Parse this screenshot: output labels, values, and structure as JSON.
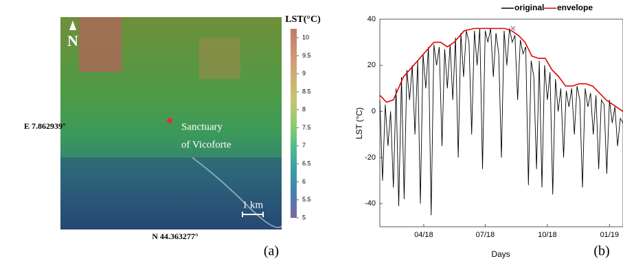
{
  "map": {
    "north": "N",
    "place": [
      "Sanctuary",
      "of Vicoforte"
    ],
    "scale": "1 km",
    "lon_label": "E 7.862939°",
    "lat_label": "N 44.363277°",
    "panel": "(a)",
    "colorbar_title": "LST(°C)",
    "colorbar_lim": [
      5,
      10.25
    ],
    "colorbar_ticks": [
      10,
      9.5,
      9,
      8.5,
      8,
      7.5,
      7,
      6.5,
      6,
      5.5,
      5
    ]
  },
  "chart_data": {
    "type": "line",
    "panel": "(b)",
    "xlabel": "Days",
    "ylabel": "LST (°C)",
    "legend": "top-right",
    "xlim": [
      25,
      385
    ],
    "ylim": [
      -50,
      40
    ],
    "xticks": [
      {
        "value": 90,
        "label": "04/18"
      },
      {
        "value": 181,
        "label": "07/18"
      },
      {
        "value": 273,
        "label": "10/18"
      },
      {
        "value": 365,
        "label": "01/19"
      }
    ],
    "yticks": [
      -40,
      -20,
      0,
      20,
      40
    ],
    "max_marker": {
      "x": 222,
      "y": 36,
      "color": "#999999"
    },
    "series": [
      {
        "name": "original",
        "color": "#000000",
        "x": [
          25,
          29,
          33,
          37,
          41,
          45,
          49,
          53,
          57,
          61,
          65,
          69,
          73,
          77,
          81,
          85,
          89,
          93,
          97,
          101,
          105,
          109,
          113,
          117,
          121,
          125,
          129,
          133,
          137,
          141,
          145,
          149,
          153,
          157,
          161,
          165,
          169,
          173,
          177,
          181,
          185,
          189,
          193,
          197,
          201,
          205,
          209,
          213,
          217,
          221,
          225,
          229,
          233,
          237,
          241,
          245,
          249,
          253,
          257,
          261,
          265,
          269,
          273,
          277,
          281,
          285,
          289,
          293,
          297,
          301,
          305,
          309,
          313,
          317,
          321,
          325,
          329,
          333,
          337,
          341,
          345,
          349,
          353,
          357,
          361,
          365,
          369,
          373,
          377,
          381,
          385
        ],
        "values": [
          5,
          -30,
          3,
          -15,
          0,
          -33,
          10,
          -41,
          15,
          -38,
          18,
          5,
          20,
          -10,
          22,
          -40,
          25,
          10,
          28,
          -45,
          29,
          20,
          28,
          -15,
          27,
          10,
          29,
          5,
          32,
          -20,
          34,
          15,
          35,
          30,
          -10,
          35,
          20,
          36,
          -25,
          35,
          30,
          36,
          15,
          34,
          25,
          -20,
          35,
          20,
          36,
          30,
          33,
          5,
          31,
          25,
          28,
          -32,
          22,
          15,
          -25,
          22,
          -33,
          20,
          5,
          17,
          -36,
          14,
          0,
          10,
          -20,
          9,
          2,
          10,
          -10,
          11,
          5,
          -33,
          10,
          2,
          8,
          -10,
          7,
          -25,
          5,
          3,
          -27,
          5,
          -5,
          2,
          -15,
          -3,
          -5
        ]
      },
      {
        "name": "envelope",
        "color": "#e00000",
        "x": [
          25,
          35,
          45,
          60,
          75,
          90,
          105,
          115,
          125,
          135,
          150,
          165,
          190,
          210,
          220,
          230,
          240,
          250,
          260,
          270,
          280,
          290,
          300,
          310,
          320,
          330,
          340,
          350,
          360,
          370,
          380,
          385
        ],
        "values": [
          7,
          4,
          5,
          15,
          20,
          25,
          30,
          30,
          28,
          30,
          35,
          36,
          36,
          36,
          35,
          33,
          30,
          24,
          23,
          23,
          18,
          15,
          11,
          11,
          12,
          12,
          11,
          8,
          5,
          3,
          1,
          0
        ]
      }
    ]
  }
}
